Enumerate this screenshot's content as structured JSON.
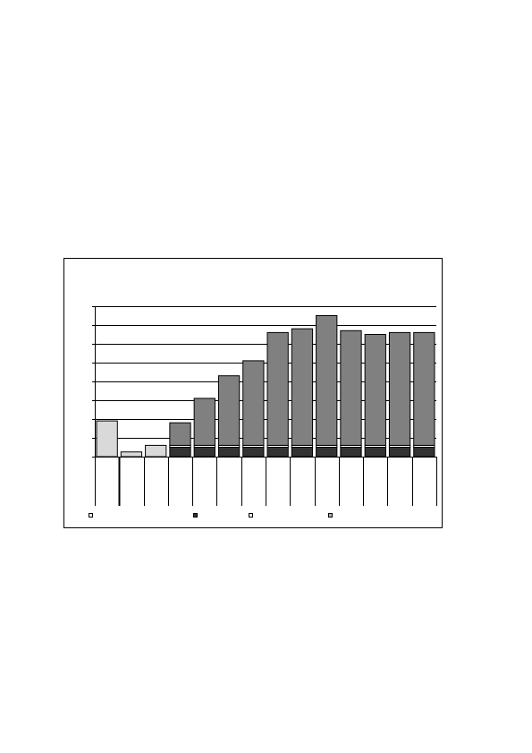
{
  "chart_data": {
    "type": "bar",
    "stacked": true,
    "grid": true,
    "legend_placement": "bottom",
    "ylim": [
      0,
      8
    ],
    "yticks": [
      0,
      1,
      2,
      3,
      4,
      5,
      6,
      7,
      8
    ],
    "categories": [
      "",
      "",
      "",
      "",
      "",
      "",
      "",
      "",
      "",
      "",
      "",
      "",
      "",
      ""
    ],
    "series": [
      {
        "values": [
          1.9,
          0.25,
          0.6,
          0,
          0,
          0,
          0,
          0,
          0,
          0,
          0,
          0,
          0,
          0
        ]
      },
      {
        "values": [
          0,
          0,
          0,
          0.5,
          0.5,
          0.5,
          0.5,
          0.5,
          0.5,
          0.5,
          0.5,
          0.5,
          0.5,
          0.5
        ]
      },
      {
        "values": [
          0,
          0,
          0,
          0.1,
          0.1,
          0.1,
          0.1,
          0.1,
          0.1,
          0.1,
          0.1,
          0.1,
          0.1,
          0.1
        ]
      },
      {
        "values": [
          0,
          0,
          0,
          1.2,
          2.5,
          3.7,
          4.5,
          6.0,
          6.2,
          6.9,
          6.1,
          5.9,
          6.0,
          6.0
        ]
      }
    ],
    "colors": [
      "#d9d9d9",
      "#333333",
      "#ffffff",
      "#808080"
    ]
  }
}
